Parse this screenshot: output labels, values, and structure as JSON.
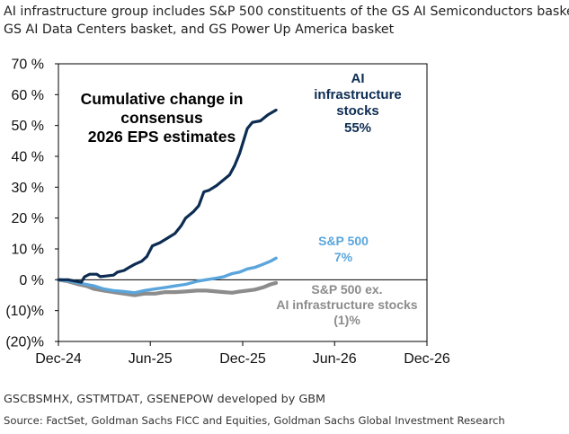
{
  "header": {
    "line1": "AI infrastructure group includes S&P 500 constituents of the GS AI Semiconductors basket,",
    "line2": "GS AI Data Centers basket, and GS Power Up America basket"
  },
  "footer": {
    "codes": "GSCBSMHX, GSTMTDAT, GSENEPOW developed by GBM",
    "source": "Source: FactSet, Goldman Sachs FICC and Equities, Goldman Sachs Global Investment Research"
  },
  "chart_data": {
    "type": "line",
    "title_lines": [
      "Cumulative change in",
      "consensus",
      "2026 EPS estimates"
    ],
    "y_ticks": [
      70,
      60,
      50,
      40,
      30,
      20,
      10,
      0,
      -10,
      -20
    ],
    "y_tick_labels": [
      "70 %",
      "60 %",
      "50 %",
      "40 %",
      "30 %",
      "20 %",
      "10 %",
      "0 %",
      "(10)%",
      "(20)%"
    ],
    "ylim": [
      -20,
      70
    ],
    "x_ticks": [
      "2024-12-01",
      "2025-06-01",
      "2025-12-01",
      "2026-06-01",
      "2026-12-01"
    ],
    "x_tick_labels": [
      "Dec-24",
      "Jun-25",
      "Dec-25",
      "Jun-26",
      "Dec-26"
    ],
    "xlim": [
      "2024-12-01",
      "2026-12-01"
    ],
    "grid": false,
    "series": [
      {
        "name": "AI infrastructure stocks",
        "label_lines": [
          "AI",
          "infrastructure",
          "stocks",
          "55%"
        ],
        "color": "#0d2c52",
        "points": [
          [
            "2024-12-01",
            0.0
          ],
          [
            "2024-12-20",
            0.0
          ],
          [
            "2025-01-05",
            -0.5
          ],
          [
            "2025-01-15",
            -0.8
          ],
          [
            "2025-01-22",
            1.0
          ],
          [
            "2025-02-01",
            1.8
          ],
          [
            "2025-02-15",
            1.8
          ],
          [
            "2025-02-22",
            1.0
          ],
          [
            "2025-03-05",
            1.2
          ],
          [
            "2025-03-20",
            1.5
          ],
          [
            "2025-03-28",
            2.5
          ],
          [
            "2025-04-10",
            3.0
          ],
          [
            "2025-04-20",
            4.0
          ],
          [
            "2025-05-01",
            5.0
          ],
          [
            "2025-05-15",
            6.0
          ],
          [
            "2025-05-25",
            7.5
          ],
          [
            "2025-06-05",
            11.0
          ],
          [
            "2025-06-20",
            12.0
          ],
          [
            "2025-07-05",
            13.5
          ],
          [
            "2025-07-20",
            15.0
          ],
          [
            "2025-08-01",
            17.5
          ],
          [
            "2025-08-10",
            20.0
          ],
          [
            "2025-08-25",
            22.0
          ],
          [
            "2025-09-05",
            24.0
          ],
          [
            "2025-09-15",
            28.5
          ],
          [
            "2025-09-25",
            29.0
          ],
          [
            "2025-10-10",
            30.5
          ],
          [
            "2025-10-25",
            32.5
          ],
          [
            "2025-11-05",
            34.0
          ],
          [
            "2025-11-15",
            37.0
          ],
          [
            "2025-11-25",
            41.0
          ],
          [
            "2025-12-10",
            49.0
          ],
          [
            "2025-12-20",
            51.0
          ],
          [
            "2026-01-05",
            51.5
          ],
          [
            "2026-01-20",
            53.5
          ],
          [
            "2026-02-05",
            55.0
          ]
        ]
      },
      {
        "name": "S&P 500",
        "label_lines": [
          "S&P 500",
          "7%"
        ],
        "color": "#5aa5dc",
        "points": [
          [
            "2024-12-01",
            0.0
          ],
          [
            "2024-12-20",
            -0.3
          ],
          [
            "2025-01-10",
            -1.0
          ],
          [
            "2025-01-25",
            -1.5
          ],
          [
            "2025-02-10",
            -2.0
          ],
          [
            "2025-03-01",
            -3.0
          ],
          [
            "2025-03-20",
            -3.5
          ],
          [
            "2025-04-10",
            -3.8
          ],
          [
            "2025-05-01",
            -4.2
          ],
          [
            "2025-05-20",
            -3.5
          ],
          [
            "2025-06-10",
            -3.0
          ],
          [
            "2025-07-01",
            -2.5
          ],
          [
            "2025-07-20",
            -2.0
          ],
          [
            "2025-08-10",
            -1.5
          ],
          [
            "2025-09-01",
            -0.5
          ],
          [
            "2025-09-20",
            0.0
          ],
          [
            "2025-10-10",
            0.5
          ],
          [
            "2025-10-25",
            1.0
          ],
          [
            "2025-11-10",
            2.0
          ],
          [
            "2025-11-25",
            2.5
          ],
          [
            "2025-12-10",
            3.5
          ],
          [
            "2025-12-25",
            4.0
          ],
          [
            "2026-01-10",
            5.0
          ],
          [
            "2026-01-25",
            6.0
          ],
          [
            "2026-02-05",
            7.0
          ]
        ]
      },
      {
        "name": "S&P 500 ex. AI infrastructure stocks",
        "label_lines": [
          "S&P 500 ex.",
          "AI infrastructure stocks",
          "(1)%"
        ],
        "color": "#8c8c8c",
        "points": [
          [
            "2024-12-01",
            0.0
          ],
          [
            "2024-12-20",
            -0.5
          ],
          [
            "2025-01-10",
            -1.5
          ],
          [
            "2025-01-25",
            -2.0
          ],
          [
            "2025-02-10",
            -3.0
          ],
          [
            "2025-03-01",
            -3.5
          ],
          [
            "2025-03-20",
            -4.0
          ],
          [
            "2025-04-10",
            -4.5
          ],
          [
            "2025-05-01",
            -5.0
          ],
          [
            "2025-05-20",
            -4.5
          ],
          [
            "2025-06-10",
            -4.5
          ],
          [
            "2025-07-01",
            -4.0
          ],
          [
            "2025-07-20",
            -4.0
          ],
          [
            "2025-08-10",
            -3.8
          ],
          [
            "2025-09-01",
            -3.5
          ],
          [
            "2025-09-20",
            -3.5
          ],
          [
            "2025-10-10",
            -3.8
          ],
          [
            "2025-10-25",
            -4.0
          ],
          [
            "2025-11-10",
            -4.2
          ],
          [
            "2025-11-25",
            -3.8
          ],
          [
            "2025-12-10",
            -3.5
          ],
          [
            "2025-12-25",
            -3.2
          ],
          [
            "2026-01-10",
            -2.5
          ],
          [
            "2026-01-25",
            -1.5
          ],
          [
            "2026-02-05",
            -1.0
          ]
        ]
      }
    ]
  }
}
